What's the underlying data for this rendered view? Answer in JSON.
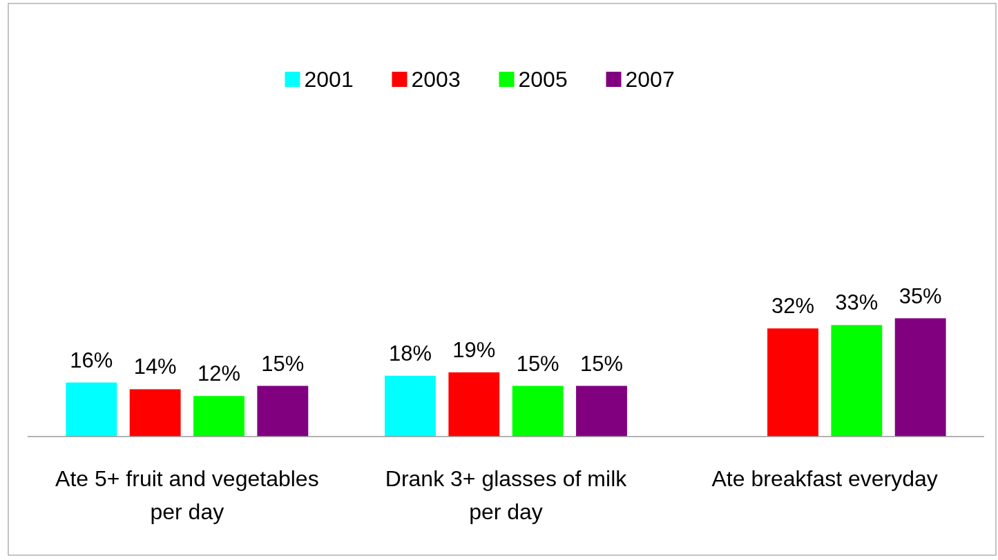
{
  "chart_data": {
    "type": "bar",
    "categories": [
      "Ate 5+ fruit and vegetables per day",
      "Drank 3+ glasses of milk per day",
      "Ate breakfast everyday"
    ],
    "series": [
      {
        "name": "2001",
        "color": "#00ffff",
        "values": [
          16,
          18,
          null
        ],
        "value_labels": [
          "16%",
          "18%",
          null
        ]
      },
      {
        "name": "2003",
        "color": "#ff0000",
        "values": [
          14,
          19,
          32
        ],
        "value_labels": [
          "14%",
          "19%",
          "32%"
        ]
      },
      {
        "name": "2005",
        "color": "#00ff00",
        "values": [
          12,
          15,
          33
        ],
        "value_labels": [
          "12%",
          "15%",
          "33%"
        ]
      },
      {
        "name": "2007",
        "color": "#800080",
        "values": [
          15,
          15,
          35
        ],
        "value_labels": [
          "15%",
          "15%",
          "35%"
        ]
      }
    ],
    "legend": "top",
    "grid": false
  }
}
